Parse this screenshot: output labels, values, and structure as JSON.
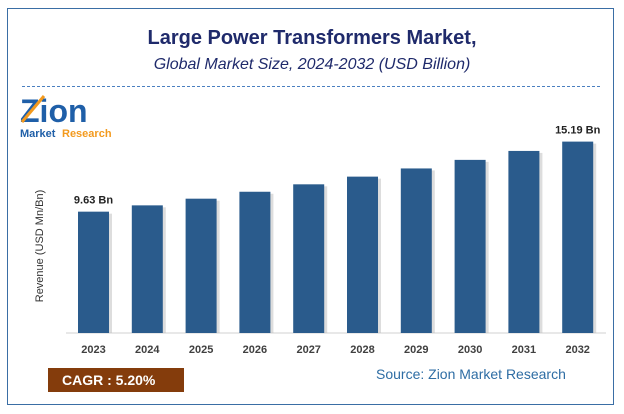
{
  "chart_data": {
    "type": "bar",
    "title": "Large Power Transformers Market,",
    "subtitle": "Global Market Size, 2024-2032 (USD Billion)",
    "ylabel": "Revenue (USD Mn/Bn)",
    "xlabel": "",
    "categories": [
      "2023",
      "2024",
      "2025",
      "2026",
      "2027",
      "2028",
      "2029",
      "2030",
      "2031",
      "2032"
    ],
    "values": [
      9.63,
      10.13,
      10.66,
      11.21,
      11.8,
      12.41,
      13.06,
      13.74,
      14.45,
      15.19
    ],
    "data_labels": {
      "0": "9.63 Bn",
      "9": "15.19 Bn"
    },
    "ylim": [
      0,
      16
    ],
    "grid": false,
    "bar_color": "#2a5b8c"
  },
  "logo": {
    "text_main": "Zion",
    "text_sub1": "Market",
    "text_sub2": "Research"
  },
  "cagr": "CAGR : 5.20%",
  "source": "Source: Zion Market Research"
}
